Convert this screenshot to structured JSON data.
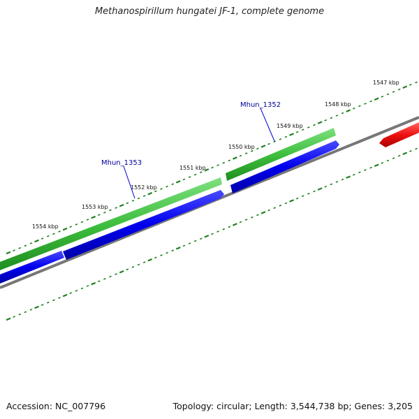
{
  "title": "Methanospirillum hungatei JF-1, complete genome",
  "footer": {
    "accession": "Accession: NC_007796",
    "summary": "Topology: circular; Length: 3,544,738 bp; Genes: 3,205"
  },
  "scale_labels": [
    "1547 kbp",
    "1548 kbp",
    "1549 kbp",
    "1550 kbp",
    "1551 kbp",
    "1552 kbp",
    "1553 kbp",
    "1554 kbp"
  ],
  "gene_labels": [
    "Mhun_1352",
    "Mhun_1353"
  ],
  "colors": {
    "green_track": "#3fbf3f",
    "blue_track": "#0000ee",
    "red_feature": "#ee1111",
    "backbone": "#808080",
    "ticks": "#1f7f1f",
    "gene_label": "#000099"
  }
}
